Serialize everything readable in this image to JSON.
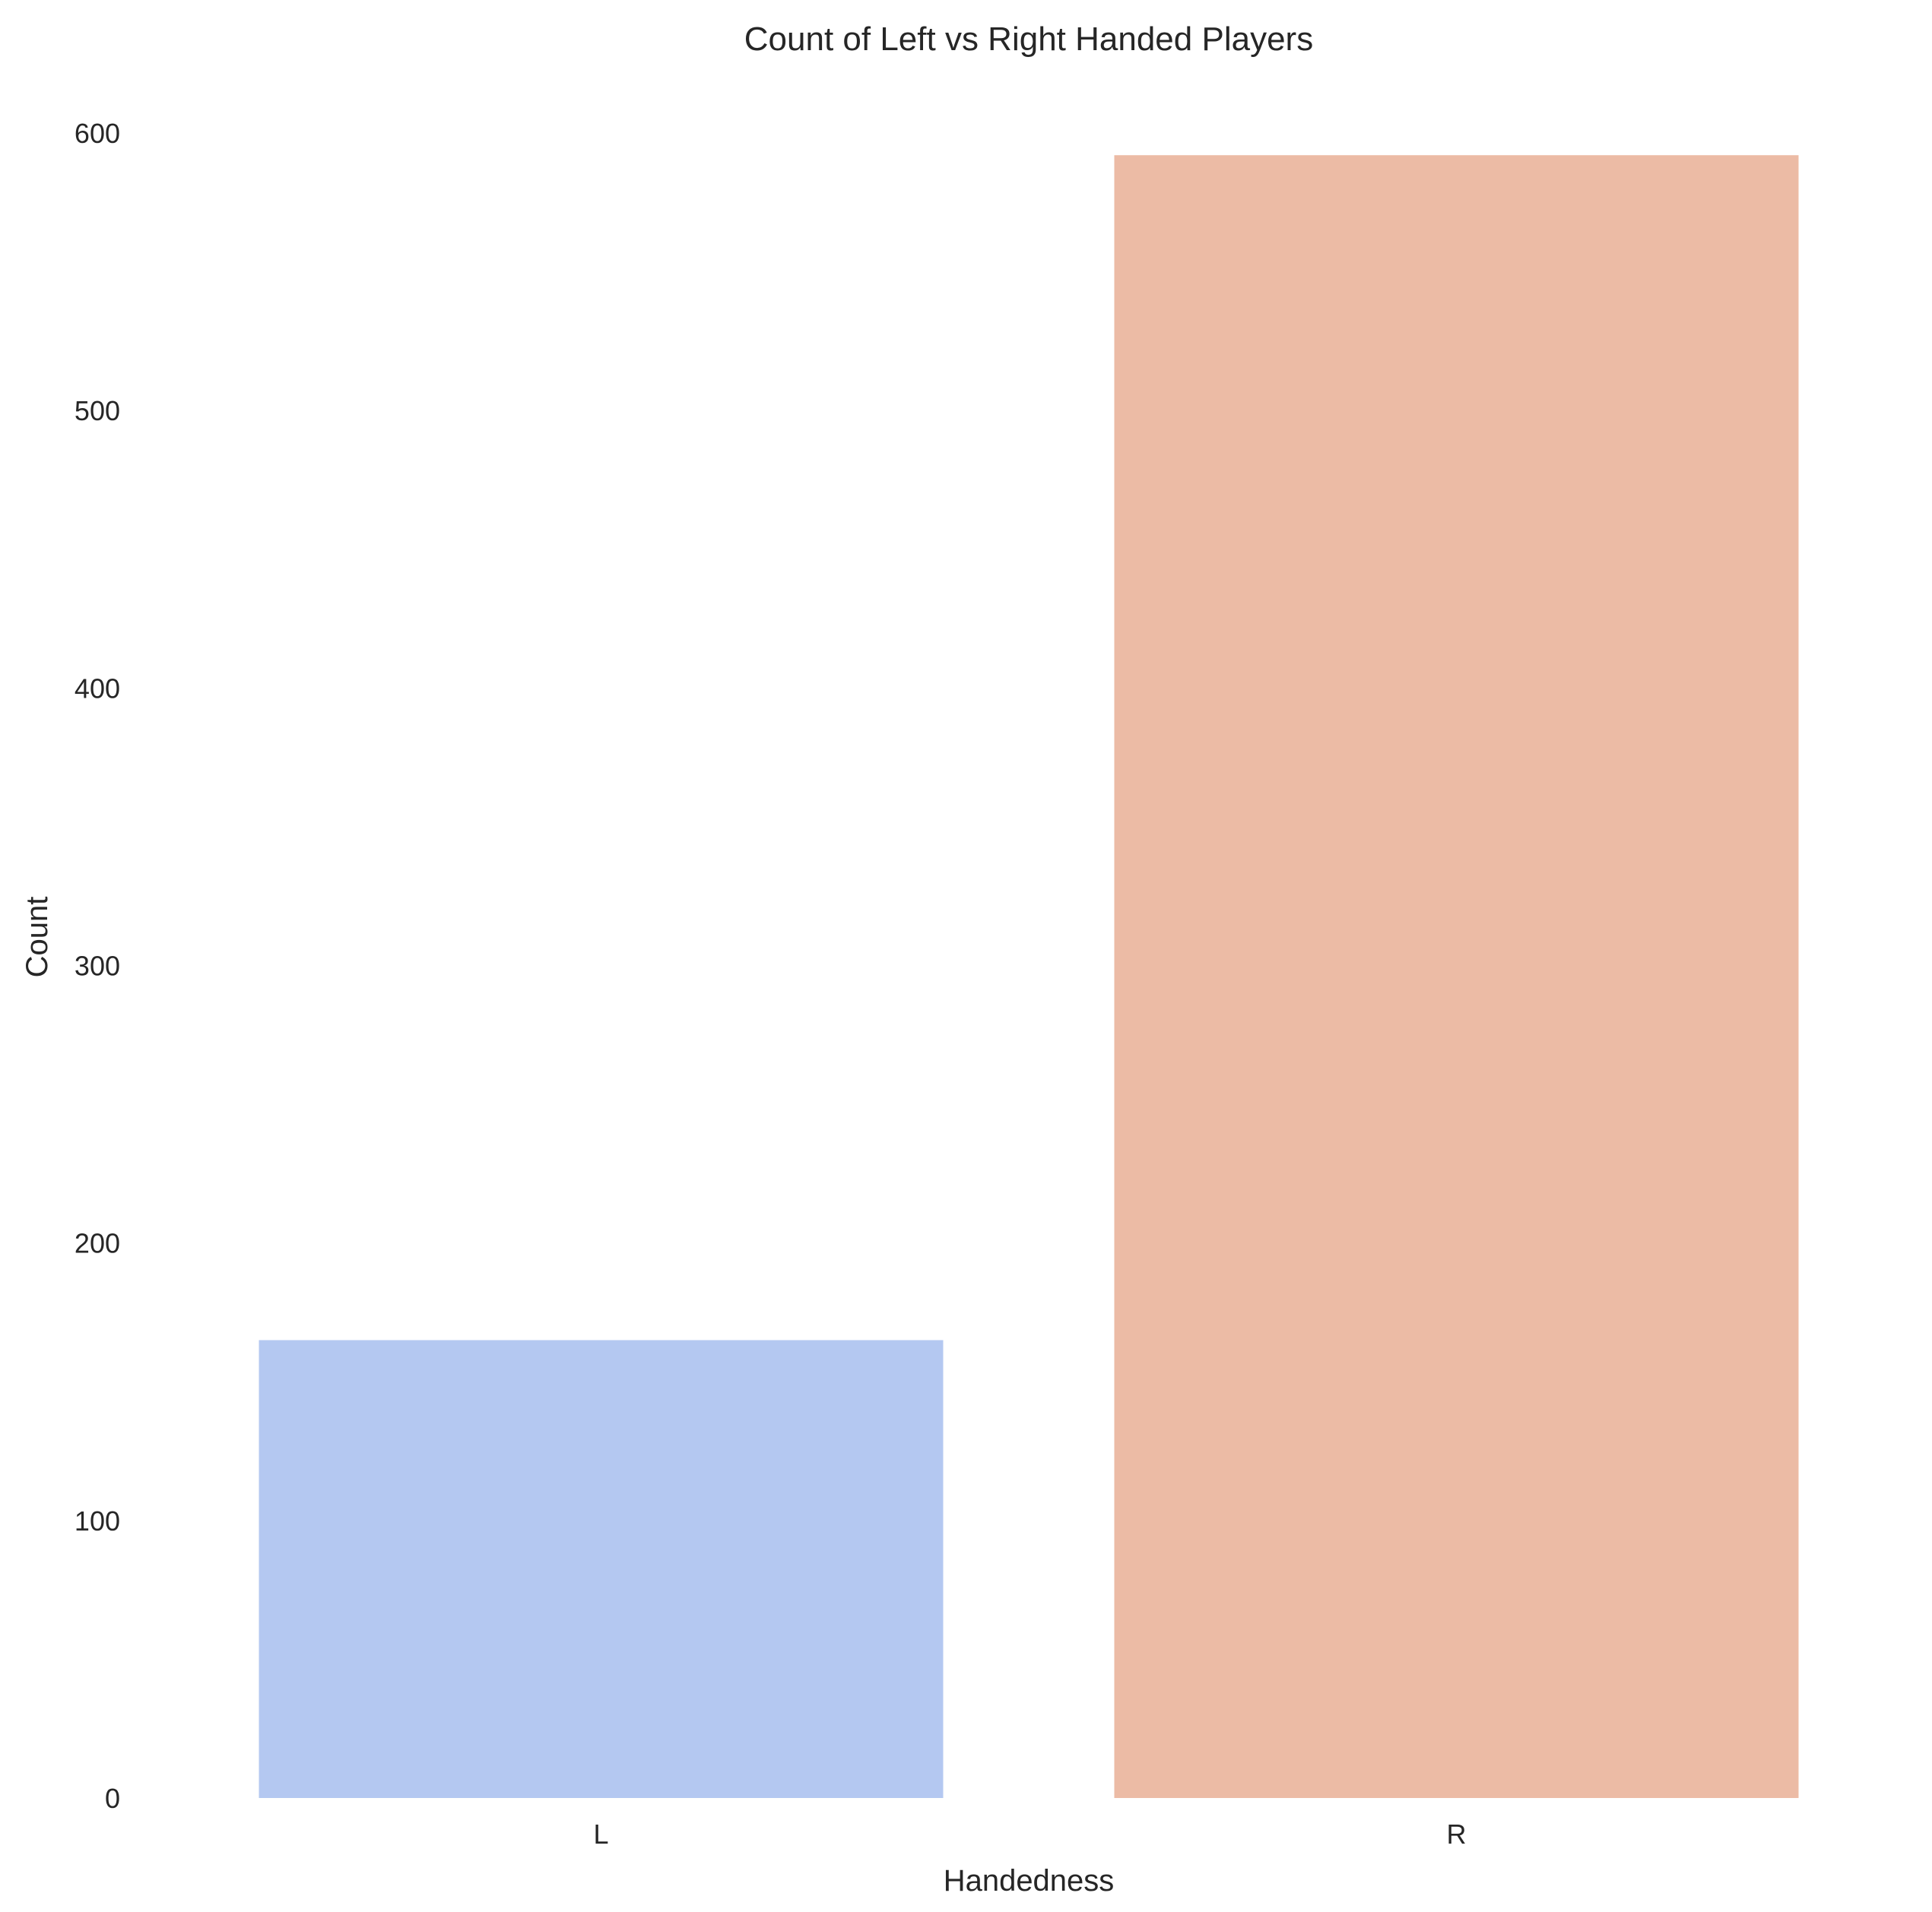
{
  "chart_data": {
    "type": "bar",
    "title": "Count of Left vs Right Handed Players",
    "xlabel": "Handedness",
    "ylabel": "Count",
    "categories": [
      "L",
      "R"
    ],
    "values": [
      165,
      592
    ],
    "ylim": [
      0,
      600
    ],
    "yticks": [
      "0",
      "100",
      "200",
      "300",
      "400",
      "500",
      "600"
    ],
    "colors": [
      "#b4c8f1",
      "#ecbba5"
    ],
    "grid": false,
    "legend": "none"
  }
}
